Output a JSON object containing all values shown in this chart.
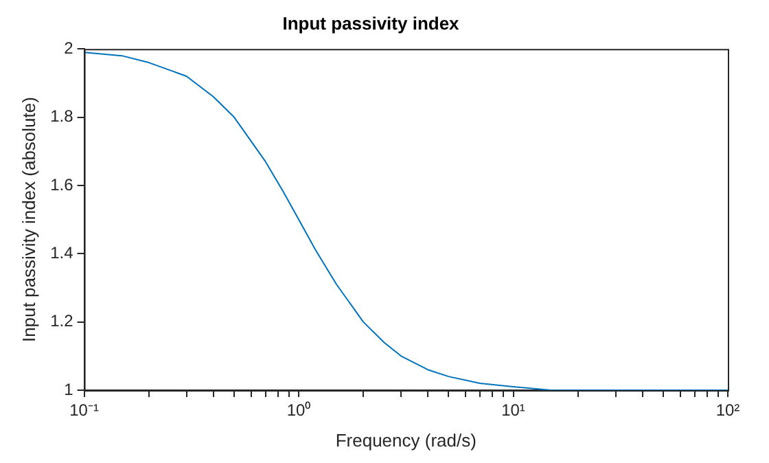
{
  "chart_data": {
    "type": "line",
    "title": "Input passivity index",
    "xlabel": "Frequency (rad/s)",
    "ylabel": "Input passivity index (absolute)",
    "log": "x",
    "marker": "none",
    "x": [
      0.1,
      0.15,
      0.2,
      0.3,
      0.4,
      0.5,
      0.7,
      0.85,
      1,
      1.2,
      1.5,
      2,
      2.5,
      3,
      4,
      5,
      7,
      10,
      15,
      20,
      50,
      100
    ],
    "series": [
      {
        "color": "#0072bd",
        "values": [
          1.99,
          1.98,
          1.96,
          1.92,
          1.86,
          1.8,
          1.67,
          1.58,
          1.5,
          1.41,
          1.31,
          1.2,
          1.14,
          1.1,
          1.06,
          1.04,
          1.02,
          1.01,
          1.0,
          1.0,
          1.0,
          1.0
        ]
      }
    ],
    "xlim": [
      0.1,
      100
    ],
    "ylim": [
      1,
      2
    ],
    "xticks": [
      {
        "value": 0.1,
        "label": "10⁻¹"
      },
      {
        "value": 0.2,
        "label": null
      },
      {
        "value": 0.3,
        "label": null
      },
      {
        "value": 0.4,
        "label": null
      },
      {
        "value": 0.5,
        "label": null
      },
      {
        "value": 0.6,
        "label": null
      },
      {
        "value": 0.7,
        "label": null
      },
      {
        "value": 0.8,
        "label": null
      },
      {
        "value": 0.9,
        "label": null
      },
      {
        "value": 1,
        "label": "10⁰"
      },
      {
        "value": 2,
        "label": null
      },
      {
        "value": 3,
        "label": null
      },
      {
        "value": 4,
        "label": null
      },
      {
        "value": 5,
        "label": null
      },
      {
        "value": 6,
        "label": null
      },
      {
        "value": 7,
        "label": null
      },
      {
        "value": 8,
        "label": null
      },
      {
        "value": 9,
        "label": null
      },
      {
        "value": 10,
        "label": "10¹"
      },
      {
        "value": 20,
        "label": null
      },
      {
        "value": 30,
        "label": null
      },
      {
        "value": 40,
        "label": null
      },
      {
        "value": 50,
        "label": null
      },
      {
        "value": 60,
        "label": null
      },
      {
        "value": 70,
        "label": null
      },
      {
        "value": 80,
        "label": null
      },
      {
        "value": 90,
        "label": null
      },
      {
        "value": 100,
        "label": "10²"
      }
    ],
    "yticks": [
      1,
      1.2,
      1.4,
      1.6,
      1.8,
      2
    ]
  }
}
